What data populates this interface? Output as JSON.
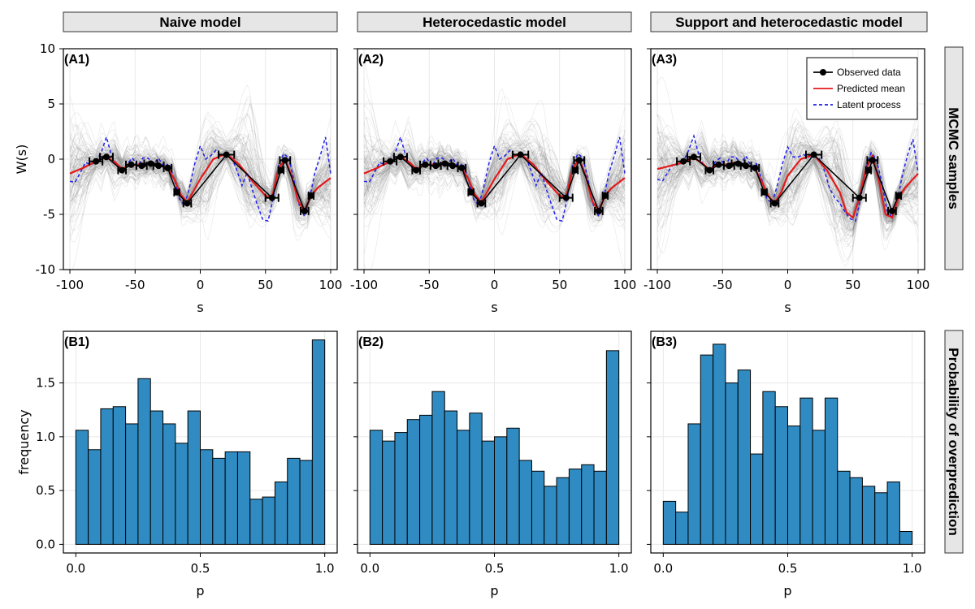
{
  "colors": {
    "bar": "#2f8bc2",
    "bar_edge": "#000000",
    "observed": "#000000",
    "predicted": "#e41a1c",
    "latent": "#1f1fef",
    "samples": "#6e6e6e",
    "strip_bg": "#e6e6e6",
    "grid": "#e8e8e8"
  },
  "column_titles": [
    "Naive model",
    "Heterocedastic model",
    "Support and heterocedastic model"
  ],
  "row_titles": [
    "MCMC samples",
    "Probability of overprediction"
  ],
  "chart_data": [
    {
      "type": "line",
      "label": "(A1)",
      "column": 0,
      "xlabel": "s",
      "ylabel": "W(s)",
      "xlim": [
        -105,
        105
      ],
      "ylim": [
        -10,
        10
      ],
      "xticks": [
        -100,
        -50,
        0,
        50,
        100
      ],
      "xtick_labels": [
        "-100",
        "-50",
        "0",
        "50",
        "100"
      ],
      "yticks": [
        -10,
        -5,
        0,
        5,
        10
      ],
      "ytick_labels": [
        "-10",
        "-5",
        "0",
        "5",
        "10"
      ],
      "grid": true,
      "observed": {
        "x": [
          -80,
          -72,
          -60,
          -53,
          -45,
          -38,
          -32,
          -25,
          -18,
          -10,
          20,
          55,
          62,
          65,
          80,
          85
        ],
        "y": [
          -0.2,
          0.2,
          -1.0,
          -0.5,
          -0.6,
          -0.4,
          -0.6,
          -0.8,
          -3.0,
          -4.0,
          0.4,
          -3.5,
          -1.0,
          -0.1,
          -4.7,
          -3.3
        ],
        "xerr": [
          5,
          5,
          3,
          4,
          4,
          5,
          4,
          3,
          2,
          3,
          6,
          5,
          2,
          4,
          3,
          2
        ]
      },
      "predicted_mean": {
        "x": [
          -100,
          -90,
          -80,
          -72,
          -65,
          -60,
          -55,
          -48,
          -40,
          -32,
          -25,
          -20,
          -15,
          -10,
          0,
          10,
          20,
          30,
          40,
          50,
          55,
          60,
          65,
          70,
          75,
          80,
          85,
          90,
          100
        ],
        "y": [
          -1.3,
          -0.8,
          -0.2,
          0.2,
          -0.3,
          -0.9,
          -0.6,
          -0.5,
          -0.4,
          -0.5,
          -0.8,
          -1.8,
          -3.2,
          -3.9,
          -1.8,
          0.0,
          0.5,
          -0.5,
          -2.0,
          -3.3,
          -3.5,
          -0.9,
          0.0,
          -1.5,
          -3.8,
          -4.7,
          -3.3,
          -2.6,
          -1.7
        ]
      },
      "latent_process": {
        "x": [
          -100,
          -96,
          -92,
          -88,
          -84,
          -80,
          -76,
          -72,
          -68,
          -64,
          -60,
          -56,
          -52,
          -48,
          -44,
          -40,
          -36,
          -32,
          -28,
          -24,
          -20,
          -16,
          -12,
          -8,
          -4,
          0,
          4,
          8,
          12,
          16,
          20,
          24,
          28,
          32,
          36,
          40,
          44,
          48,
          52,
          56,
          60,
          64,
          68,
          72,
          76,
          80,
          84,
          88,
          92,
          96,
          100
        ],
        "y": [
          -2.0,
          -2.1,
          -1.2,
          -0.3,
          -0.5,
          -0.2,
          0.6,
          2.0,
          0.3,
          -0.6,
          -1.3,
          -0.4,
          0.1,
          -0.6,
          0.1,
          0.1,
          -0.4,
          0.1,
          -0.7,
          -0.4,
          -1.8,
          -3.6,
          -4.2,
          -2.4,
          -0.3,
          1.2,
          0.0,
          0.3,
          0.8,
          0.3,
          0.5,
          0.2,
          -1.0,
          -2.4,
          -1.2,
          -2.8,
          -4.2,
          -5.5,
          -5.6,
          -3.5,
          -0.6,
          0.5,
          0.1,
          -2.0,
          -4.2,
          -5.2,
          -3.4,
          -1.2,
          0.3,
          2.0,
          -1.3
        ]
      }
    },
    {
      "type": "line",
      "label": "(A2)",
      "column": 1,
      "xlabel": "s",
      "xlim": [
        -105,
        105
      ],
      "ylim": [
        -10,
        10
      ],
      "xticks": [
        -100,
        -50,
        0,
        50,
        100
      ],
      "xtick_labels": [
        "-100",
        "-50",
        "0",
        "50",
        "100"
      ],
      "yticks": [
        -10,
        -5,
        0,
        5,
        10
      ],
      "grid": true,
      "observed": {
        "x": [
          -80,
          -72,
          -60,
          -53,
          -45,
          -38,
          -32,
          -25,
          -18,
          -10,
          20,
          55,
          62,
          65,
          80,
          85
        ],
        "y": [
          -0.2,
          0.2,
          -1.0,
          -0.5,
          -0.6,
          -0.4,
          -0.6,
          -0.8,
          -3.0,
          -4.0,
          0.4,
          -3.5,
          -1.0,
          -0.1,
          -4.7,
          -3.3
        ],
        "xerr": [
          5,
          5,
          3,
          4,
          4,
          5,
          4,
          3,
          2,
          3,
          6,
          5,
          2,
          4,
          3,
          2
        ]
      },
      "predicted_mean": {
        "x": [
          -100,
          -90,
          -80,
          -72,
          -65,
          -60,
          -55,
          -48,
          -40,
          -32,
          -25,
          -20,
          -15,
          -10,
          0,
          10,
          20,
          30,
          40,
          50,
          55,
          60,
          65,
          70,
          75,
          80,
          85,
          90,
          100
        ],
        "y": [
          -1.3,
          -0.8,
          -0.2,
          0.2,
          -0.3,
          -0.9,
          -0.6,
          -0.5,
          -0.4,
          -0.5,
          -0.8,
          -1.8,
          -3.2,
          -3.9,
          -1.8,
          0.0,
          0.5,
          -0.5,
          -2.0,
          -3.3,
          -3.5,
          -0.9,
          0.0,
          -1.5,
          -3.8,
          -4.7,
          -3.3,
          -2.6,
          -1.7
        ]
      },
      "latent_process": {
        "x": [
          -100,
          -96,
          -92,
          -88,
          -84,
          -80,
          -76,
          -72,
          -68,
          -64,
          -60,
          -56,
          -52,
          -48,
          -44,
          -40,
          -36,
          -32,
          -28,
          -24,
          -20,
          -16,
          -12,
          -8,
          -4,
          0,
          4,
          8,
          12,
          16,
          20,
          24,
          28,
          32,
          36,
          40,
          44,
          48,
          52,
          56,
          60,
          64,
          68,
          72,
          76,
          80,
          84,
          88,
          92,
          96,
          100
        ],
        "y": [
          -2.0,
          -2.1,
          -1.2,
          -0.3,
          -0.5,
          -0.2,
          0.6,
          2.0,
          0.3,
          -0.6,
          -1.3,
          -0.4,
          0.1,
          -0.6,
          0.1,
          0.1,
          -0.4,
          0.1,
          -0.7,
          -0.4,
          -1.8,
          -3.6,
          -4.2,
          -2.4,
          -0.3,
          1.2,
          0.0,
          0.3,
          0.8,
          0.3,
          0.5,
          0.2,
          -1.0,
          -2.4,
          -1.2,
          -2.8,
          -4.2,
          -5.5,
          -5.6,
          -3.5,
          -0.6,
          0.5,
          0.1,
          -2.0,
          -4.2,
          -5.2,
          -3.4,
          -1.2,
          0.3,
          2.0,
          -1.3
        ]
      }
    },
    {
      "type": "line",
      "label": "(A3)",
      "column": 2,
      "xlabel": "s",
      "xlim": [
        -105,
        105
      ],
      "ylim": [
        -10,
        10
      ],
      "xticks": [
        -100,
        -50,
        0,
        50,
        100
      ],
      "xtick_labels": [
        "-100",
        "-50",
        "0",
        "50",
        "100"
      ],
      "yticks": [
        -10,
        -5,
        0,
        5,
        10
      ],
      "grid": true,
      "legend": {
        "placement": "top-right",
        "entries": [
          "Observed data",
          "Predicted mean",
          "Latent process"
        ]
      },
      "observed": {
        "x": [
          -80,
          -72,
          -60,
          -53,
          -45,
          -38,
          -32,
          -25,
          -18,
          -10,
          20,
          55,
          62,
          65,
          80,
          85
        ],
        "y": [
          -0.2,
          0.2,
          -1.0,
          -0.5,
          -0.6,
          -0.4,
          -0.6,
          -0.8,
          -3.0,
          -4.0,
          0.4,
          -3.5,
          -1.0,
          -0.1,
          -4.7,
          -3.3
        ],
        "xerr": [
          5,
          5,
          3,
          4,
          4,
          5,
          4,
          3,
          2,
          3,
          6,
          5,
          2,
          4,
          3,
          2
        ]
      },
      "predicted_mean": {
        "x": [
          -100,
          -90,
          -80,
          -72,
          -65,
          -60,
          -55,
          -48,
          -40,
          -32,
          -25,
          -20,
          -15,
          -10,
          -5,
          0,
          10,
          20,
          30,
          40,
          45,
          50,
          55,
          60,
          65,
          70,
          75,
          80,
          85,
          90,
          100
        ],
        "y": [
          -0.9,
          -0.6,
          -0.3,
          0.1,
          -0.4,
          -1.0,
          -0.5,
          -0.5,
          -0.3,
          -0.5,
          -0.9,
          -2.0,
          -3.3,
          -4.0,
          -3.0,
          -1.5,
          0.0,
          0.4,
          -1.0,
          -3.0,
          -4.8,
          -5.3,
          -3.5,
          -0.9,
          0.3,
          -2.0,
          -5.0,
          -5.3,
          -3.5,
          -2.6,
          -1.3
        ]
      },
      "latent_process": {
        "x": [
          -100,
          -96,
          -92,
          -88,
          -84,
          -80,
          -76,
          -72,
          -68,
          -64,
          -60,
          -56,
          -52,
          -48,
          -44,
          -40,
          -36,
          -32,
          -28,
          -24,
          -20,
          -16,
          -12,
          -8,
          -4,
          0,
          4,
          8,
          12,
          16,
          20,
          24,
          28,
          32,
          36,
          40,
          44,
          48,
          52,
          56,
          60,
          64,
          68,
          72,
          76,
          80,
          84,
          88,
          92,
          96,
          100
        ],
        "y": [
          -1.8,
          -2.0,
          -1.2,
          -0.5,
          -0.4,
          -0.2,
          0.8,
          2.1,
          0.3,
          -0.6,
          -1.2,
          -0.3,
          0.1,
          -0.6,
          0.2,
          0.2,
          -0.4,
          0.3,
          -0.7,
          -0.4,
          -1.8,
          -3.6,
          -4.0,
          -2.4,
          -0.4,
          1.1,
          0.2,
          0.2,
          0.4,
          0.2,
          0.3,
          0.1,
          -1.0,
          -2.6,
          -3.5,
          -4.0,
          -4.8,
          -5.4,
          -5.6,
          -3.5,
          -0.8,
          0.6,
          0.0,
          -2.0,
          -4.6,
          -5.3,
          -3.8,
          -1.4,
          0.4,
          1.8,
          -1.2
        ]
      }
    },
    {
      "type": "bar",
      "label": "(B1)",
      "column": 0,
      "xlabel": "p",
      "ylabel": "frequency",
      "xlim": [
        -0.05,
        1.05
      ],
      "ylim": [
        -0.08,
        1.98
      ],
      "xticks": [
        0.0,
        0.5,
        1.0
      ],
      "xtick_labels": [
        "0.0",
        "0.5",
        "1.0"
      ],
      "yticks": [
        0.0,
        0.5,
        1.0,
        1.5
      ],
      "ytick_labels": [
        "0.0",
        "0.5",
        "1.0",
        "1.5"
      ],
      "bin_width": 0.05,
      "bin_starts": [
        0.0,
        0.05,
        0.1,
        0.15,
        0.2,
        0.25,
        0.3,
        0.35,
        0.4,
        0.45,
        0.5,
        0.55,
        0.6,
        0.65,
        0.7,
        0.75,
        0.8,
        0.85,
        0.9,
        0.95
      ],
      "values": [
        1.06,
        0.88,
        1.26,
        1.28,
        1.12,
        1.54,
        1.24,
        1.12,
        0.94,
        1.24,
        0.88,
        0.8,
        0.86,
        0.86,
        0.42,
        0.44,
        0.58,
        0.8,
        0.78,
        1.9
      ]
    },
    {
      "type": "bar",
      "label": "(B2)",
      "column": 1,
      "xlabel": "p",
      "xlim": [
        -0.05,
        1.05
      ],
      "ylim": [
        -0.08,
        1.98
      ],
      "xticks": [
        0.0,
        0.5,
        1.0
      ],
      "xtick_labels": [
        "0.0",
        "0.5",
        "1.0"
      ],
      "yticks": [
        0.0,
        0.5,
        1.0,
        1.5
      ],
      "bin_width": 0.05,
      "bin_starts": [
        0.0,
        0.05,
        0.1,
        0.15,
        0.2,
        0.25,
        0.3,
        0.35,
        0.4,
        0.45,
        0.5,
        0.55,
        0.6,
        0.65,
        0.7,
        0.75,
        0.8,
        0.85,
        0.9,
        0.95
      ],
      "values": [
        1.06,
        0.96,
        1.04,
        1.16,
        1.2,
        1.42,
        1.24,
        1.06,
        1.22,
        0.96,
        1.0,
        1.08,
        0.78,
        0.68,
        0.54,
        0.62,
        0.7,
        0.74,
        0.68,
        1.8
      ]
    },
    {
      "type": "bar",
      "label": "(B3)",
      "column": 2,
      "xlabel": "p",
      "xlim": [
        -0.05,
        1.05
      ],
      "ylim": [
        -0.08,
        1.98
      ],
      "xticks": [
        0.0,
        0.5,
        1.0
      ],
      "xtick_labels": [
        "0.0",
        "0.5",
        "1.0"
      ],
      "yticks": [
        0.0,
        0.5,
        1.0,
        1.5
      ],
      "bin_width": 0.05,
      "bin_starts": [
        0.0,
        0.05,
        0.1,
        0.15,
        0.2,
        0.25,
        0.3,
        0.35,
        0.4,
        0.45,
        0.5,
        0.55,
        0.6,
        0.65,
        0.7,
        0.75,
        0.8,
        0.85,
        0.9,
        0.95
      ],
      "values": [
        0.4,
        0.3,
        1.12,
        1.76,
        1.86,
        1.5,
        1.62,
        0.84,
        1.42,
        1.28,
        1.1,
        1.36,
        1.06,
        1.36,
        0.68,
        0.62,
        0.54,
        0.48,
        0.58,
        0.12
      ]
    }
  ]
}
